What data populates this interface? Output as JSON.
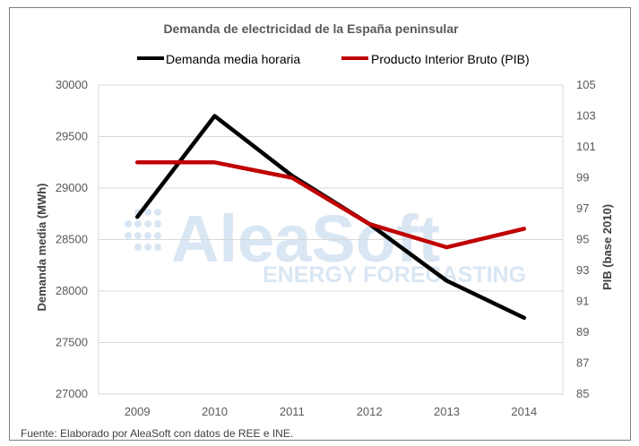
{
  "chart_data": {
    "type": "line",
    "title": "Demanda de electricidad de la España peninsular",
    "categories": [
      "2009",
      "2010",
      "2011",
      "2012",
      "2013",
      "2014"
    ],
    "series": [
      {
        "name": "Demanda media horaria",
        "axis": "left",
        "color": "#000000",
        "values": [
          28720,
          29700,
          29120,
          28650,
          28100,
          27740
        ]
      },
      {
        "name": "Producto Interior Bruto (PIB)",
        "axis": "right",
        "color": "#c00000",
        "values": [
          100,
          100,
          99,
          96,
          94.5,
          95.7
        ]
      }
    ],
    "ylabel": "Demanda media (MWh)",
    "ylim": [
      27000,
      30000
    ],
    "yticks": [
      "27000",
      "27500",
      "28000",
      "28500",
      "29000",
      "29500",
      "30000"
    ],
    "y2label": "PIB (base 2010)",
    "y2lim": [
      85,
      105
    ],
    "y2ticks": [
      "85",
      "87",
      "89",
      "91",
      "93",
      "95",
      "97",
      "99",
      "101",
      "103",
      "105"
    ],
    "grid": true,
    "legend": "top"
  },
  "watermark": {
    "brand": "AleaSoft",
    "tagline": "ENERGY FORECASTING"
  },
  "source_note": "Fuente: Elaborado por AleaSoft con datos de REE e INE."
}
